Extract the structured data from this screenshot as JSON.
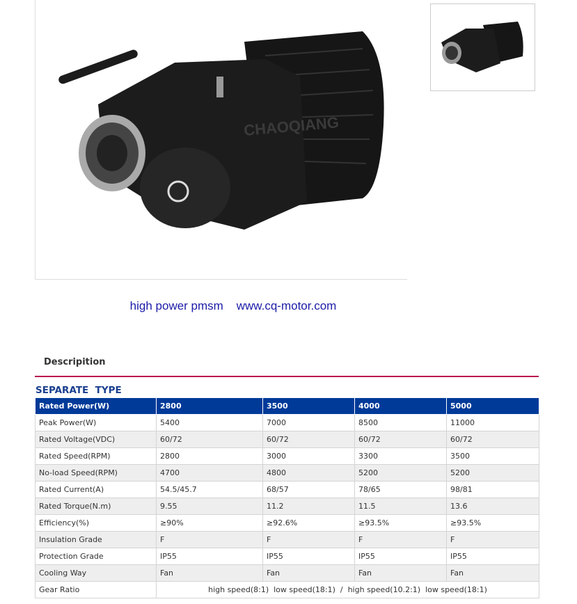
{
  "caption": "high power pmsm    www.cq-motor.com",
  "tab": "Descripition",
  "section_title": "SEPARATE  TYPE",
  "header": [
    "Rated Power(W)",
    "2800",
    "3500",
    "4000",
    "5000"
  ],
  "rows": [
    [
      "Peak Power(W)",
      "5400",
      "7000",
      "8500",
      "11000"
    ],
    [
      "Rated Voltage(VDC)",
      "60/72",
      "60/72",
      "60/72",
      "60/72"
    ],
    [
      "Rated Speed(RPM)",
      "2800",
      "3000",
      "3300",
      "3500"
    ],
    [
      "No-load Speed(RPM)",
      "4700",
      "4800",
      "5200",
      "5200"
    ],
    [
      "Rated Current(A)",
      "54.5/45.7",
      "68/57",
      "78/65",
      "98/81"
    ],
    [
      "Rated Torque(N.m)",
      "9.55",
      "11.2",
      "11.5",
      "13.6"
    ],
    [
      "Efficiency(%)",
      "≥90%",
      "≥92.6%",
      "≥93.5%",
      "≥93.5%"
    ],
    [
      "Insulation Grade",
      "F",
      "F",
      "F",
      "F"
    ],
    [
      "Protection Grade",
      "IP55",
      "IP55",
      "IP55",
      "IP55"
    ],
    [
      "Cooling Way",
      "Fan",
      "Fan",
      "Fan",
      "Fan"
    ]
  ],
  "gear_ratio": {
    "label": "Gear Ratio",
    "value": "high speed(8:1)  low speed(18:1)  /  high speed(10.2:1)  low speed(18:1)"
  },
  "watermark": "CHAOQIANG",
  "colors": {
    "header_bg": "#003a99",
    "rule": "#b8154e",
    "title": "#1a3f8f",
    "caption": "#1c1ca8"
  }
}
